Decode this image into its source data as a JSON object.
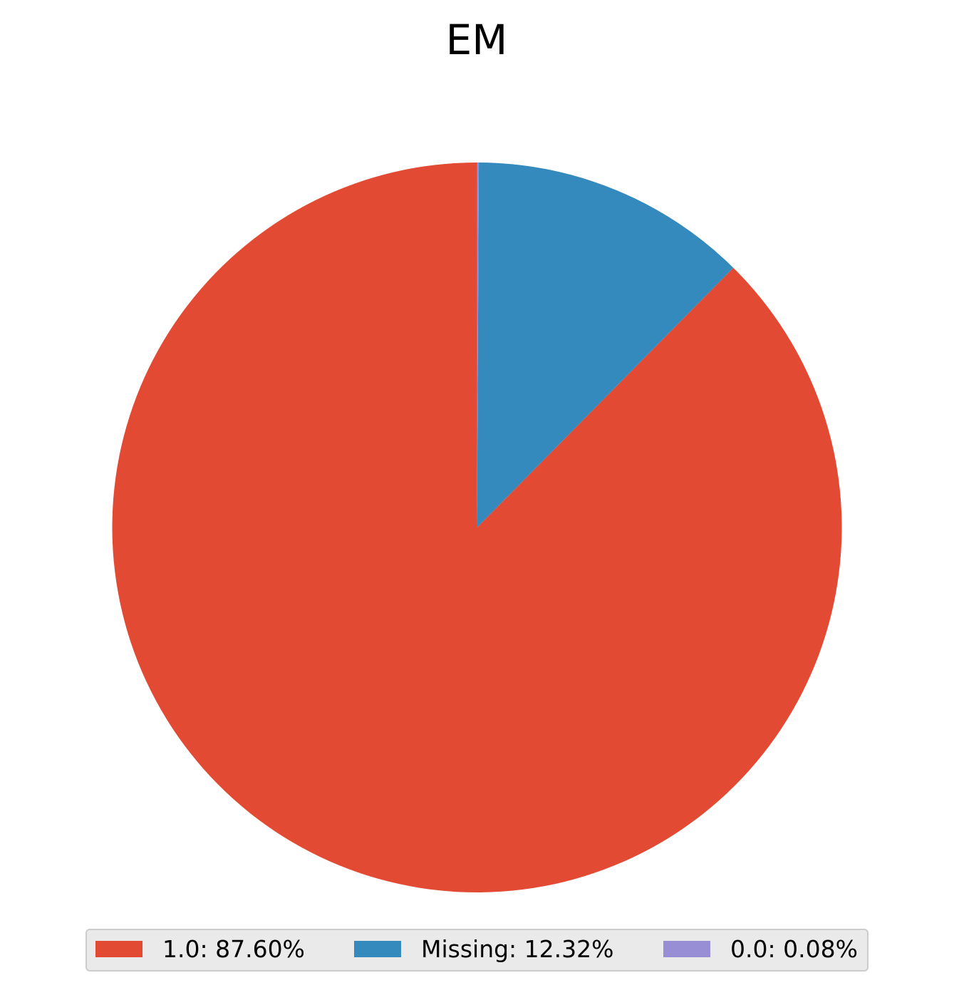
{
  "chart_data": {
    "type": "pie",
    "title": "EM",
    "slices": [
      {
        "label": "1.0",
        "value": 87.6,
        "legend": "1.0: 87.60%",
        "color": "#E24A33"
      },
      {
        "label": "Missing",
        "value": 12.32,
        "legend": "Missing: 12.32%",
        "color": "#348ABD"
      },
      {
        "label": "0.0",
        "value": 0.08,
        "legend": "0.0: 0.08%",
        "color": "#988ED5"
      }
    ],
    "start_angle_deg": 90,
    "direction": "clockwise",
    "legend_placement": "bottom-center"
  }
}
